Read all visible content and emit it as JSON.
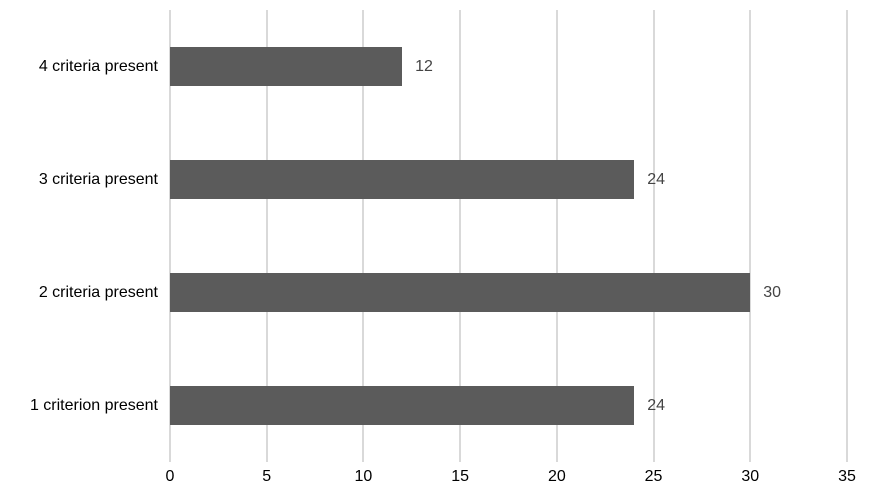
{
  "chart_data": {
    "type": "bar",
    "orientation": "horizontal",
    "title": "",
    "xlabel": "",
    "ylabel": "",
    "categories": [
      "4 criteria present",
      "3 criteria present",
      "2 criteria present",
      "1 criterion present"
    ],
    "values": [
      12,
      24,
      30,
      24
    ],
    "data_labels": [
      "12",
      "24",
      "30",
      "24"
    ],
    "xlim": [
      0,
      35
    ],
    "x_ticks": [
      0,
      5,
      10,
      15,
      20,
      25,
      30,
      35
    ],
    "grid": "vertical-only",
    "legend_position": "none",
    "colors": {
      "bar": "#5b5b5b",
      "gridline": "#d9d9d9",
      "category_label": "#000000",
      "data_label": "#444444",
      "tick_label": "#000000",
      "background": "#ffffff"
    }
  }
}
